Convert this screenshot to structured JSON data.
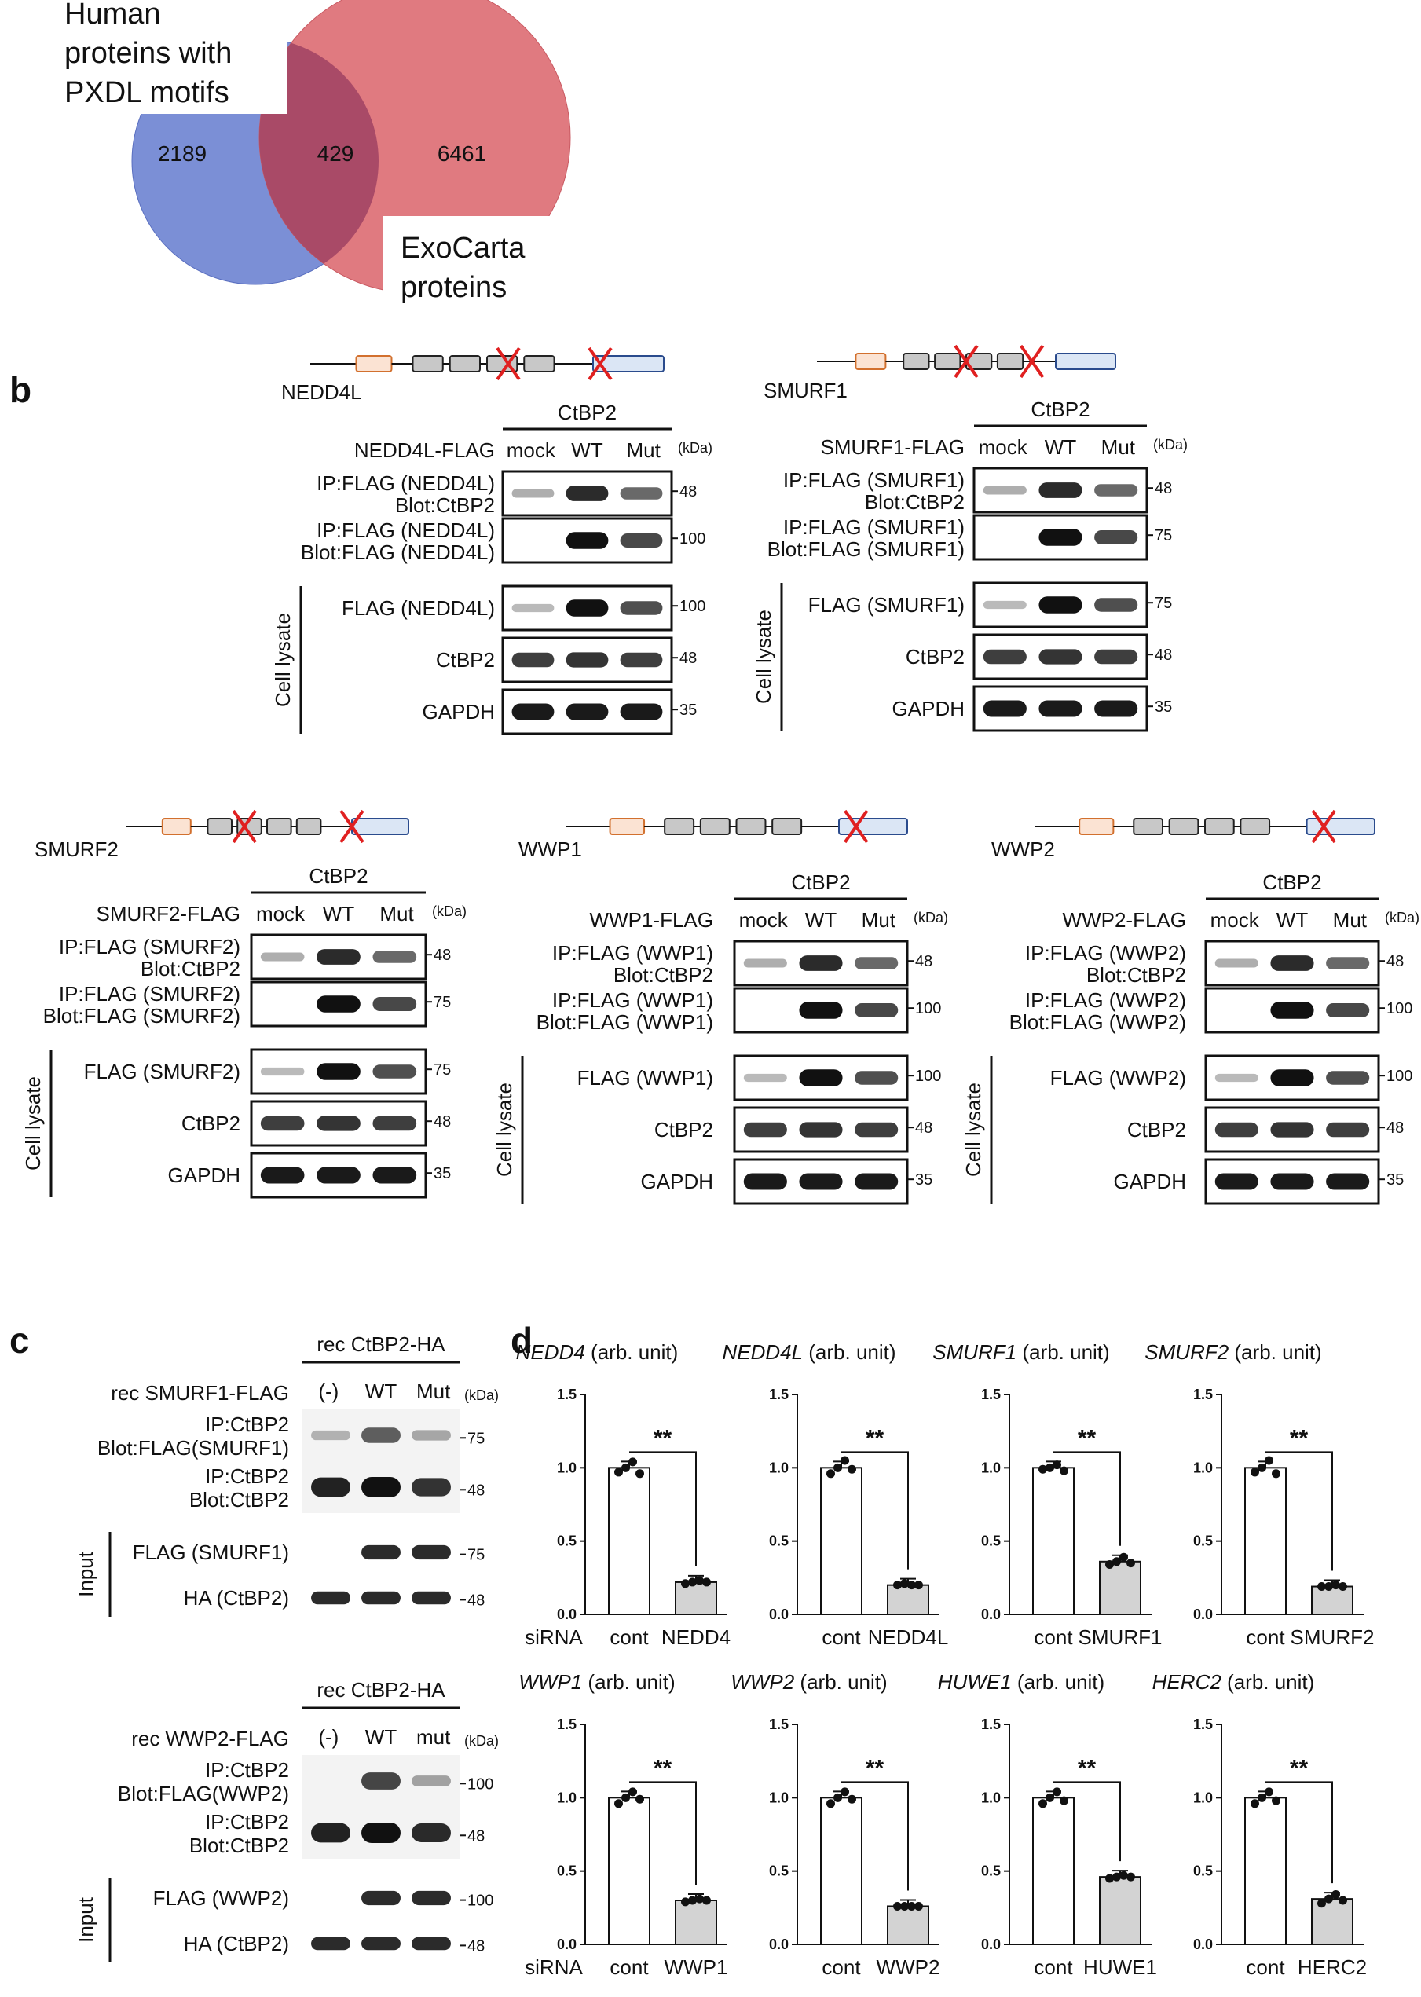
{
  "panel_a": {
    "letter": "a",
    "title_lines": [
      "Human",
      "proteins with",
      "PXDL motifs"
    ],
    "label_lines": [
      "ExoCarta",
      "proteins"
    ],
    "counts": {
      "left_only": "2189",
      "overlap": "429",
      "right_only": "6461"
    },
    "colors": {
      "left": "#7b8fd6",
      "right": "#e07a80",
      "overlap": "#a94a67"
    }
  },
  "panel_b": {
    "letter": "b",
    "kda": "(kDa)",
    "cell_lysate": "Cell lysate",
    "ctbp2_header": "CtBP2",
    "lanes": [
      "mock",
      "WT",
      "Mut"
    ],
    "blocks": [
      {
        "construct": "NEDD4L",
        "flag_label": "NEDD4L-FLAG",
        "rows": [
          {
            "label": [
              "IP:FLAG (NEDD4L)",
              "Blot:CtBP2"
            ],
            "marker": "48"
          },
          {
            "label": [
              "IP:FLAG (NEDD4L)",
              "Blot:FLAG (NEDD4L)"
            ],
            "marker": "100"
          },
          {
            "label": [
              "FLAG (NEDD4L)"
            ],
            "marker": "100"
          },
          {
            "label": [
              "CtBP2"
            ],
            "marker": "48"
          },
          {
            "label": [
              "GAPDH"
            ],
            "marker": "35"
          }
        ]
      },
      {
        "construct": "SMURF1",
        "flag_label": "SMURF1-FLAG",
        "rows": [
          {
            "label": [
              "IP:FLAG (SMURF1)",
              "Blot:CtBP2"
            ],
            "marker": "48"
          },
          {
            "label": [
              "IP:FLAG (SMURF1)",
              "Blot:FLAG (SMURF1)"
            ],
            "marker": "75"
          },
          {
            "label": [
              "FLAG (SMURF1)"
            ],
            "marker": "75"
          },
          {
            "label": [
              "CtBP2"
            ],
            "marker": "48"
          },
          {
            "label": [
              "GAPDH"
            ],
            "marker": "35"
          }
        ]
      },
      {
        "construct": "SMURF2",
        "flag_label": "SMURF2-FLAG",
        "rows": [
          {
            "label": [
              "IP:FLAG (SMURF2)",
              "Blot:CtBP2"
            ],
            "marker": "48"
          },
          {
            "label": [
              "IP:FLAG (SMURF2)",
              "Blot:FLAG (SMURF2)"
            ],
            "marker": "75"
          },
          {
            "label": [
              "FLAG (SMURF2)"
            ],
            "marker": "75"
          },
          {
            "label": [
              "CtBP2"
            ],
            "marker": "48"
          },
          {
            "label": [
              "GAPDH"
            ],
            "marker": "35"
          }
        ]
      },
      {
        "construct": "WWP1",
        "flag_label": "WWP1-FLAG",
        "rows": [
          {
            "label": [
              "IP:FLAG (WWP1)",
              "Blot:CtBP2"
            ],
            "marker": "48"
          },
          {
            "label": [
              "IP:FLAG (WWP1)",
              "Blot:FLAG (WWP1)"
            ],
            "marker": "100"
          },
          {
            "label": [
              "FLAG (WWP1)"
            ],
            "marker": "100"
          },
          {
            "label": [
              "CtBP2"
            ],
            "marker": "48"
          },
          {
            "label": [
              "GAPDH"
            ],
            "marker": "35"
          }
        ]
      },
      {
        "construct": "WWP2",
        "flag_label": "WWP2-FLAG",
        "rows": [
          {
            "label": [
              "IP:FLAG (WWP2)",
              "Blot:CtBP2"
            ],
            "marker": "48"
          },
          {
            "label": [
              "IP:FLAG (WWP2)",
              "Blot:FLAG (WWP2)"
            ],
            "marker": "100"
          },
          {
            "label": [
              "FLAG (WWP2)"
            ],
            "marker": "100"
          },
          {
            "label": [
              "CtBP2"
            ],
            "marker": "48"
          },
          {
            "label": [
              "GAPDH"
            ],
            "marker": "35"
          }
        ]
      }
    ]
  },
  "panel_c": {
    "letter": "c",
    "kda": "(kDa)",
    "input": "Input",
    "blocks": [
      {
        "header": "rec CtBP2-HA",
        "flag_label": "rec SMURF1-FLAG",
        "lanes": [
          "(-)",
          "WT",
          "Mut"
        ],
        "rows": [
          {
            "label": [
              "IP:CtBP2",
              "Blot:FLAG(SMURF1)"
            ],
            "marker": "75"
          },
          {
            "label": [
              "IP:CtBP2",
              "Blot:CtBP2"
            ],
            "marker": "48"
          },
          {
            "label": [
              "FLAG (SMURF1)"
            ],
            "marker": "75"
          },
          {
            "label": [
              "HA (CtBP2)"
            ],
            "marker": "48"
          }
        ]
      },
      {
        "header": "rec CtBP2-HA",
        "flag_label": "rec WWP2-FLAG",
        "lanes": [
          "(-)",
          "WT",
          "mut"
        ],
        "rows": [
          {
            "label": [
              "IP:CtBP2",
              "Blot:FLAG(WWP2)"
            ],
            "marker": "100"
          },
          {
            "label": [
              "IP:CtBP2",
              "Blot:CtBP2"
            ],
            "marker": "48"
          },
          {
            "label": [
              "FLAG (WWP2)"
            ],
            "marker": "100"
          },
          {
            "label": [
              "HA (CtBP2)"
            ],
            "marker": "48"
          }
        ]
      }
    ]
  },
  "panel_d": {
    "letter": "d",
    "sirna_label": "siRNA",
    "significance": "**",
    "unit_suffix": "(arb. unit)",
    "bar_colors": {
      "cont": "#ffffff",
      "knockdown": "#d3d3d3"
    }
  },
  "chart_data": [
    {
      "type": "bar",
      "title": "NEDD4 (arb. unit)",
      "gene": "NEDD4",
      "categories": [
        "cont",
        "NEDD4"
      ],
      "values": [
        1.0,
        0.22
      ],
      "points": [
        [
          0.97,
          1.0,
          1.04,
          0.96
        ],
        [
          0.21,
          0.22,
          0.23,
          0.22
        ]
      ],
      "ylim": [
        0,
        1.5
      ],
      "yticks": [
        "0.0",
        "0.5",
        "1.0",
        "1.5"
      ]
    },
    {
      "type": "bar",
      "title": "NEDD4L (arb. unit)",
      "gene": "NEDD4L",
      "categories": [
        "cont",
        "NEDD4L"
      ],
      "values": [
        1.0,
        0.2
      ],
      "points": [
        [
          0.96,
          1.0,
          1.05,
          0.99
        ],
        [
          0.2,
          0.21,
          0.2,
          0.2
        ]
      ],
      "ylim": [
        0,
        1.5
      ],
      "yticks": [
        "0.0",
        "0.5",
        "1.0",
        "1.5"
      ]
    },
    {
      "type": "bar",
      "title": "SMURF1 (arb. unit)",
      "gene": "SMURF1",
      "categories": [
        "cont",
        "SMURF1"
      ],
      "values": [
        1.0,
        0.36
      ],
      "points": [
        [
          0.99,
          1.0,
          1.02,
          0.98
        ],
        [
          0.34,
          0.36,
          0.39,
          0.35
        ]
      ],
      "ylim": [
        0,
        1.5
      ],
      "yticks": [
        "0.0",
        "0.5",
        "1.0",
        "1.5"
      ]
    },
    {
      "type": "bar",
      "title": "SMURF2 (arb. unit)",
      "gene": "SMURF2",
      "categories": [
        "cont",
        "SMURF2"
      ],
      "values": [
        1.0,
        0.19
      ],
      "points": [
        [
          0.97,
          1.0,
          1.05,
          0.96
        ],
        [
          0.19,
          0.19,
          0.2,
          0.19
        ]
      ],
      "ylim": [
        0,
        1.5
      ],
      "yticks": [
        "0.0",
        "0.5",
        "1.0",
        "1.5"
      ]
    },
    {
      "type": "bar",
      "title": "WWP1 (arb. unit)",
      "gene": "WWP1",
      "categories": [
        "cont",
        "WWP1"
      ],
      "values": [
        1.0,
        0.3
      ],
      "points": [
        [
          0.96,
          1.0,
          1.04,
          0.99
        ],
        [
          0.29,
          0.3,
          0.31,
          0.3
        ]
      ],
      "ylim": [
        0,
        1.5
      ],
      "yticks": [
        "0.0",
        "0.5",
        "1.0",
        "1.5"
      ]
    },
    {
      "type": "bar",
      "title": "WWP2 (arb. unit)",
      "gene": "WWP2",
      "categories": [
        "cont",
        "WWP2"
      ],
      "values": [
        1.0,
        0.26
      ],
      "points": [
        [
          0.96,
          1.0,
          1.04,
          0.99
        ],
        [
          0.26,
          0.26,
          0.26,
          0.26
        ]
      ],
      "ylim": [
        0,
        1.5
      ],
      "yticks": [
        "0.0",
        "0.5",
        "1.0",
        "1.5"
      ]
    },
    {
      "type": "bar",
      "title": "HUWE1 (arb. unit)",
      "gene": "HUWE1",
      "categories": [
        "cont",
        "HUWE1"
      ],
      "values": [
        1.0,
        0.46
      ],
      "points": [
        [
          0.96,
          1.0,
          1.04,
          0.98
        ],
        [
          0.45,
          0.46,
          0.47,
          0.46
        ]
      ],
      "ylim": [
        0,
        1.5
      ],
      "yticks": [
        "0.0",
        "0.5",
        "1.0",
        "1.5"
      ]
    },
    {
      "type": "bar",
      "title": "HERC2 (arb. unit)",
      "gene": "HERC2",
      "categories": [
        "cont",
        "HERC2"
      ],
      "values": [
        1.0,
        0.31
      ],
      "points": [
        [
          0.96,
          1.0,
          1.04,
          0.98
        ],
        [
          0.28,
          0.31,
          0.34,
          0.3
        ]
      ],
      "ylim": [
        0,
        1.5
      ],
      "yticks": [
        "0.0",
        "0.5",
        "1.0",
        "1.5"
      ]
    }
  ]
}
